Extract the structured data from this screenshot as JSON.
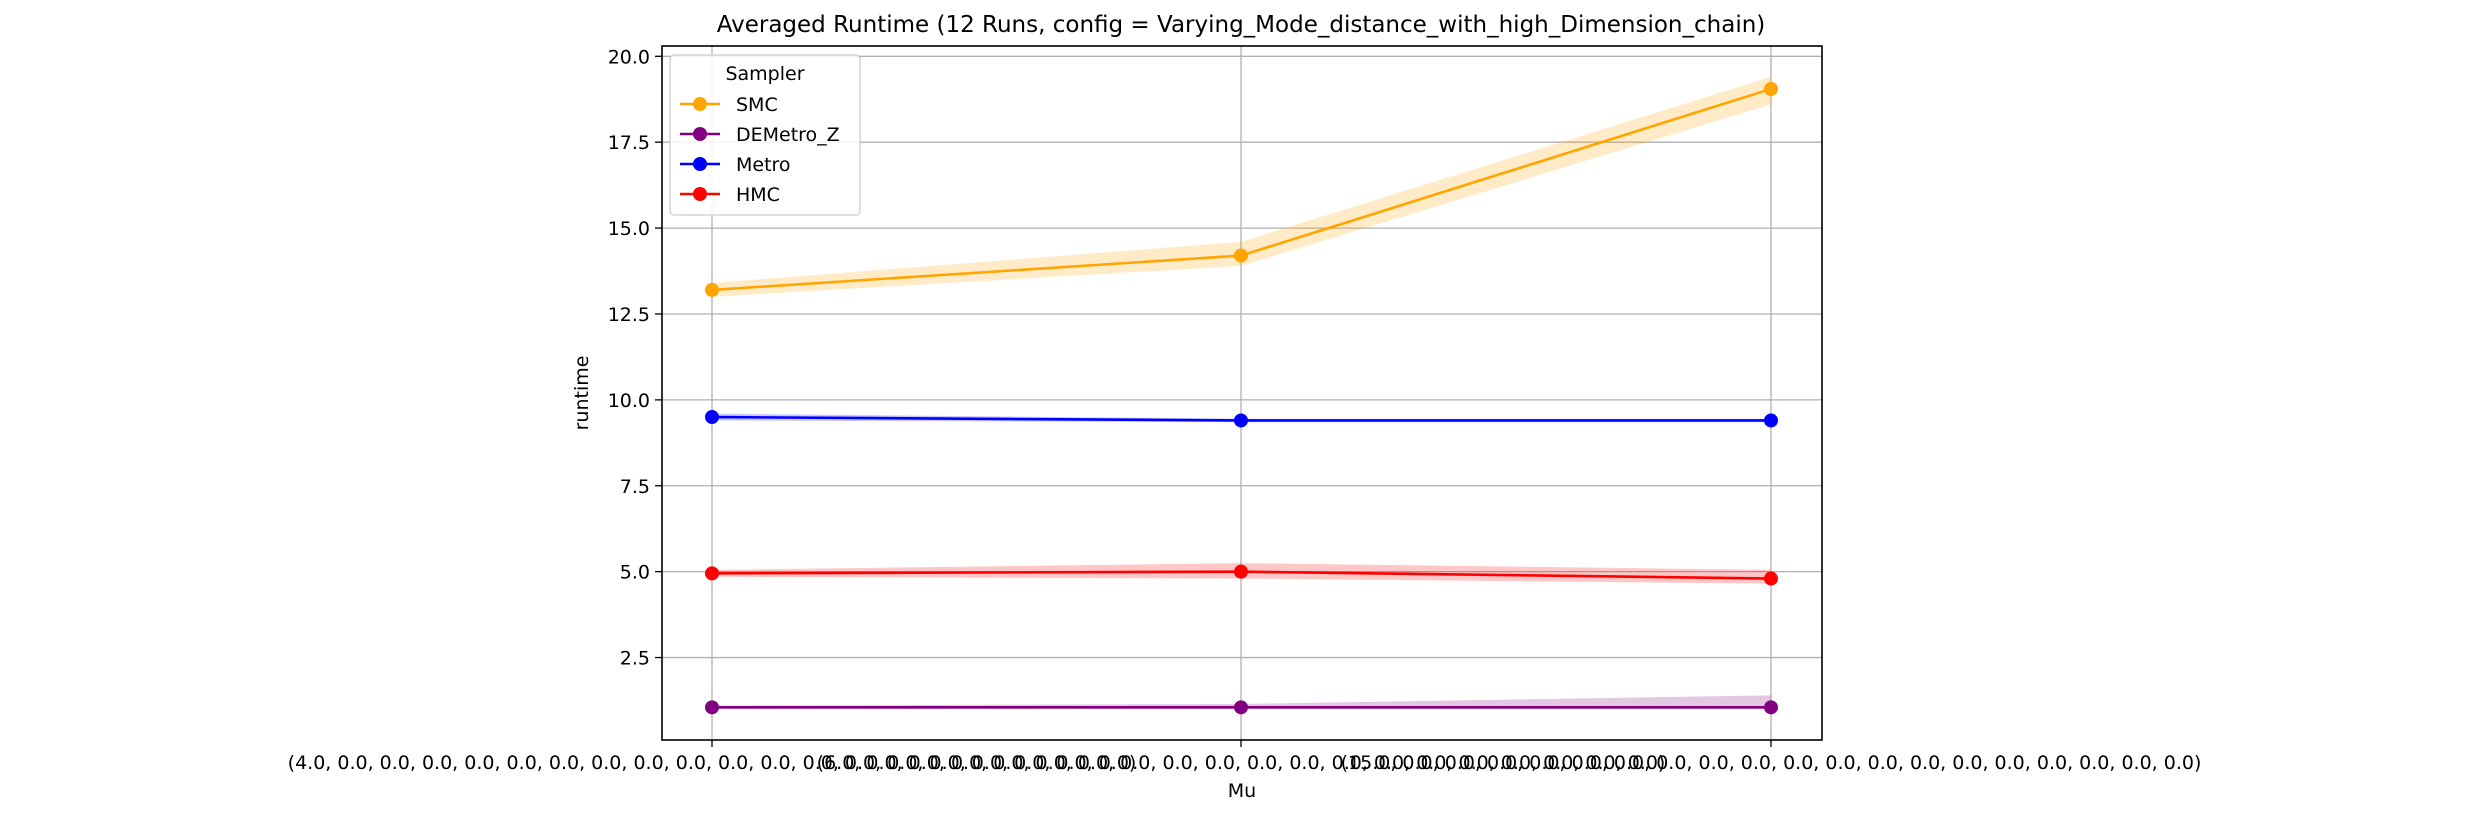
{
  "chart_data": {
    "type": "line",
    "title": "Averaged Runtime (12 Runs, config = Varying_Mode_distance_with_high_Dimension_chain)",
    "xlabel": "Mu",
    "ylabel": "runtime",
    "x": [
      "(4.0, 0.0, 0.0, 0.0, 0.0, 0.0, 0.0, 0.0, 0.0, 0.0, 0.0, 0.0, 0.0, 0.0, 0.0, 0.0, 0.0, 0.0, 0.0, 0.0)",
      "(6.0, 0.0, 0.0, 0.0, 0.0, 0.0, 0.0, 0.0, 0.0, 0.0, 0.0, 0.0, 0.0, 0.0, 0.0, 0.0, 0.0, 0.0, 0.0, 0.0)",
      "(15.0, 0.0, 0.0, 0.0, 0.0, 0.0, 0.0, 0.0, 0.0, 0.0, 0.0, 0.0, 0.0, 0.0, 0.0, 0.0, 0.0, 0.0, 0.0, 0.0)"
    ],
    "ylim": [
      0.1,
      20.3
    ],
    "yticks": [
      "2.5",
      "5.0",
      "7.5",
      "10.0",
      "12.5",
      "15.0",
      "17.5",
      "20.0"
    ],
    "grid": true,
    "legend": {
      "title": "Sampler",
      "position": "upper left"
    },
    "series": [
      {
        "name": "SMC",
        "color": "#FFA500",
        "values": [
          13.2,
          14.2,
          19.05
        ],
        "band_low": [
          13.0,
          13.9,
          18.6
        ],
        "band_high": [
          13.4,
          14.6,
          19.4
        ]
      },
      {
        "name": "DEMetro_Z",
        "color": "#800080",
        "values": [
          1.05,
          1.05,
          1.05
        ],
        "band_low": [
          1.0,
          1.0,
          1.0
        ],
        "band_high": [
          1.1,
          1.15,
          1.4
        ]
      },
      {
        "name": "Metro",
        "color": "#0000FF",
        "values": [
          9.5,
          9.4,
          9.4
        ],
        "band_low": [
          9.4,
          9.35,
          9.35
        ],
        "band_high": [
          9.6,
          9.45,
          9.45
        ]
      },
      {
        "name": "HMC",
        "color": "#FF0000",
        "values": [
          4.95,
          5.0,
          4.8
        ],
        "band_low": [
          4.85,
          4.8,
          4.65
        ],
        "band_high": [
          5.05,
          5.25,
          5.05
        ]
      }
    ]
  }
}
